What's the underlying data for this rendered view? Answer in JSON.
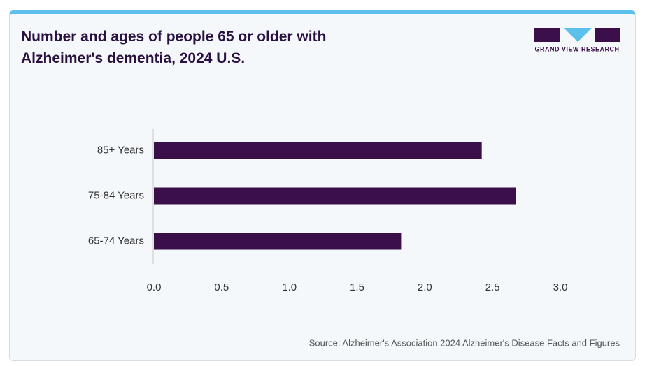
{
  "chart_data": {
    "type": "bar",
    "orientation": "horizontal",
    "title": "Number and ages of people 65 or older with Alzheimer's dementia, 2024 U.S.",
    "brand": "GRAND VIEW RESEARCH",
    "source": "Source: Alzheimer's Association 2024 Alzheimer's Disease Facts and Figures",
    "categories": [
      "85+ Years",
      "75-84 Years",
      "65-74 Years"
    ],
    "values": [
      2.42,
      2.67,
      1.83
    ],
    "color": "#3b0f4a",
    "xlim": [
      0,
      3
    ],
    "xticks": [
      {
        "value": 0,
        "label": "0.0"
      },
      0.5,
      {
        "value": 1,
        "label": "1.0"
      },
      1.5,
      {
        "value": 2,
        "label": "2.0"
      },
      2.5,
      {
        "value": 3,
        "label": "3.0"
      }
    ],
    "grid": false
  }
}
